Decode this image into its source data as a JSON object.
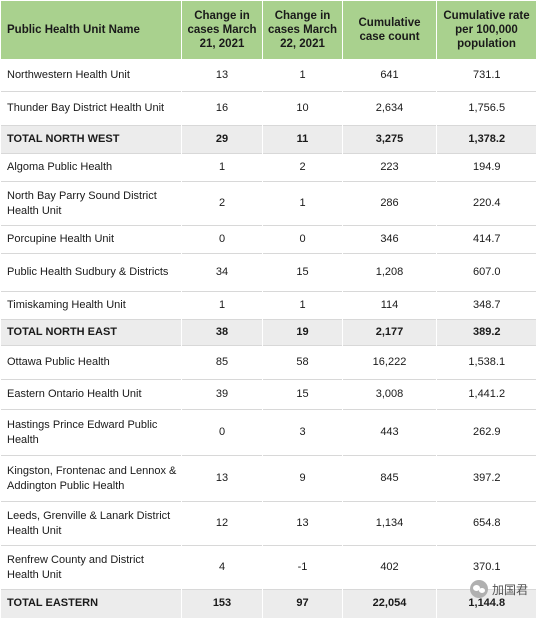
{
  "headers": [
    "Public Health Unit Name",
    "Change in cases March 21, 2021",
    "Change in cases March 22, 2021",
    "Cumulative case count",
    "Cumulative rate per 100,000 population"
  ],
  "rows": [
    {
      "name": "Northwestern Health Unit",
      "mar21": "13",
      "mar22": "1",
      "cumulative": "641",
      "rate": "731.1",
      "total": false
    },
    {
      "name": "Thunder Bay District Health Unit",
      "mar21": "16",
      "mar22": "10",
      "cumulative": "2,634",
      "rate": "1,756.5",
      "total": false
    },
    {
      "name": "TOTAL NORTH WEST",
      "mar21": "29",
      "mar22": "11",
      "cumulative": "3,275",
      "rate": "1,378.2",
      "total": true
    },
    {
      "name": "Algoma Public Health",
      "mar21": "1",
      "mar22": "2",
      "cumulative": "223",
      "rate": "194.9",
      "total": false
    },
    {
      "name": "North Bay Parry Sound District Health Unit",
      "mar21": "2",
      "mar22": "1",
      "cumulative": "286",
      "rate": "220.4",
      "total": false
    },
    {
      "name": "Porcupine Health Unit",
      "mar21": "0",
      "mar22": "0",
      "cumulative": "346",
      "rate": "414.7",
      "total": false
    },
    {
      "name": "Public Health Sudbury & Districts",
      "mar21": "34",
      "mar22": "15",
      "cumulative": "1,208",
      "rate": "607.0",
      "total": false
    },
    {
      "name": "Timiskaming Health Unit",
      "mar21": "1",
      "mar22": "1",
      "cumulative": "114",
      "rate": "348.7",
      "total": false
    },
    {
      "name": "TOTAL NORTH EAST",
      "mar21": "38",
      "mar22": "19",
      "cumulative": "2,177",
      "rate": "389.2",
      "total": true
    },
    {
      "name": "Ottawa Public Health",
      "mar21": "85",
      "mar22": "58",
      "cumulative": "16,222",
      "rate": "1,538.1",
      "total": false
    },
    {
      "name": "Eastern Ontario Health Unit",
      "mar21": "39",
      "mar22": "15",
      "cumulative": "3,008",
      "rate": "1,441.2",
      "total": false
    },
    {
      "name": "Hastings Prince Edward Public Health",
      "mar21": "0",
      "mar22": "3",
      "cumulative": "443",
      "rate": "262.9",
      "total": false
    },
    {
      "name": "Kingston, Frontenac and Lennox & Addington Public Health",
      "mar21": "13",
      "mar22": "9",
      "cumulative": "845",
      "rate": "397.2",
      "total": false
    },
    {
      "name": "Leeds, Grenville & Lanark District Health Unit",
      "mar21": "12",
      "mar22": "13",
      "cumulative": "1,134",
      "rate": "654.8",
      "total": false
    },
    {
      "name": "Renfrew County and District Health Unit",
      "mar21": "4",
      "mar22": "-1",
      "cumulative": "402",
      "rate": "370.1",
      "total": false
    },
    {
      "name": "TOTAL EASTERN",
      "mar21": "153",
      "mar22": "97",
      "cumulative": "22,054",
      "rate": "1,144.8",
      "total": true
    }
  ],
  "watermark": {
    "text": "加国君",
    "icon": "wechat-icon"
  },
  "colors": {
    "header_bg": "#a9d18e",
    "total_row_bg": "#ececec"
  }
}
